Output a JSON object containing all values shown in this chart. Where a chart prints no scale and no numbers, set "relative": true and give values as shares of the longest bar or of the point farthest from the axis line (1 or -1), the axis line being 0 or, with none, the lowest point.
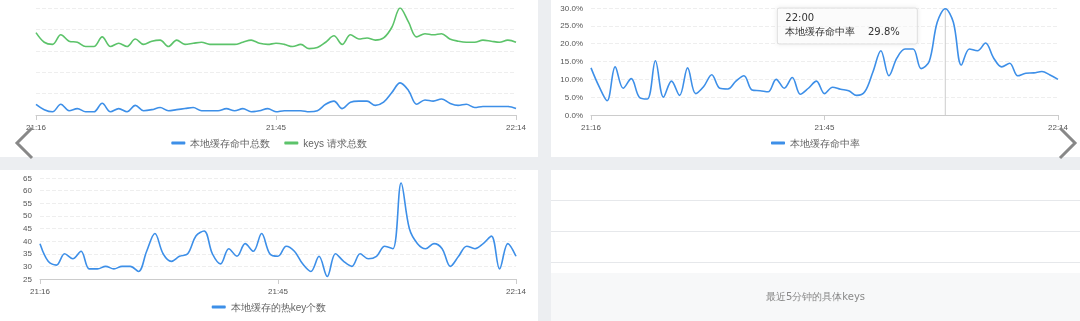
{
  "chart_data": [
    {
      "type": "line",
      "relative": true,
      "legend": "bottom",
      "grid": "y",
      "marker": "none",
      "x": [
        21.2667,
        21.2833,
        21.3,
        21.3167,
        21.3333,
        21.35,
        21.3667,
        21.3833,
        21.4,
        21.4167,
        21.4333,
        21.45,
        21.4667,
        21.4833,
        21.5,
        21.5167,
        21.5333,
        21.55,
        21.5667,
        21.5833,
        21.6,
        21.6167,
        21.6333,
        21.65,
        21.6667,
        21.6833,
        21.7,
        21.7167,
        21.7333,
        21.75,
        21.7667,
        21.7833,
        21.8,
        21.8167,
        21.8333,
        21.85,
        21.8667,
        21.8833,
        21.9,
        21.9167,
        21.9333,
        21.95,
        21.9667,
        21.9833,
        22.0,
        22.0167,
        22.0333,
        22.05,
        22.0667,
        22.0833,
        22.1,
        22.1167,
        22.1333,
        22.15,
        22.1667,
        22.1833,
        22.2,
        22.2167,
        22.2333
      ],
      "xlim": [
        21.2667,
        22.2333
      ],
      "xticks": [
        {
          "value": 21.2667,
          "label": "21:16"
        },
        {
          "value": 21.75,
          "label": "21:45"
        },
        {
          "value": 22.2333,
          "label": "22:14"
        }
      ],
      "series": [
        {
          "name": "本地缓存命中总数",
          "color": "#3d8fe8",
          "values": [
            0.1,
            0.05,
            0.03,
            0.1,
            0.04,
            0.06,
            0.03,
            0.03,
            0.11,
            0.03,
            0.06,
            0.03,
            0.09,
            0.04,
            0.05,
            0.07,
            0.04,
            0.05,
            0.06,
            0.07,
            0.04,
            0.04,
            0.04,
            0.06,
            0.04,
            0.06,
            0.03,
            0.04,
            0.06,
            0.03,
            0.04,
            0.04,
            0.04,
            0.03,
            0.04,
            0.1,
            0.13,
            0.06,
            0.12,
            0.13,
            0.13,
            0.09,
            0.12,
            0.21,
            0.3,
            0.23,
            0.1,
            0.14,
            0.13,
            0.15,
            0.11,
            0.09,
            0.1,
            0.07,
            0.08,
            0.08,
            0.08,
            0.08,
            0.06
          ]
        },
        {
          "name": "keys 请求总数",
          "color": "#5cc36a",
          "values": [
            0.77,
            0.68,
            0.66,
            0.75,
            0.69,
            0.68,
            0.64,
            0.64,
            0.73,
            0.64,
            0.67,
            0.64,
            0.71,
            0.66,
            0.69,
            0.7,
            0.64,
            0.7,
            0.66,
            0.67,
            0.68,
            0.66,
            0.66,
            0.66,
            0.66,
            0.68,
            0.7,
            0.67,
            0.66,
            0.67,
            0.66,
            0.64,
            0.66,
            0.62,
            0.63,
            0.68,
            0.74,
            0.66,
            0.75,
            0.71,
            0.72,
            0.7,
            0.72,
            0.82,
            1,
            0.87,
            0.73,
            0.76,
            0.75,
            0.76,
            0.71,
            0.69,
            0.68,
            0.68,
            0.7,
            0.69,
            0.68,
            0.7,
            0.68
          ]
        }
      ]
    },
    {
      "type": "line",
      "legend": "bottom",
      "grid": "y",
      "marker": "none",
      "x": [
        21.2667,
        21.2833,
        21.3,
        21.3167,
        21.3333,
        21.35,
        21.3667,
        21.3833,
        21.4,
        21.4167,
        21.4333,
        21.45,
        21.4667,
        21.4833,
        21.5,
        21.5167,
        21.5333,
        21.55,
        21.5667,
        21.5833,
        21.6,
        21.6167,
        21.6333,
        21.65,
        21.6667,
        21.6833,
        21.7,
        21.7167,
        21.7333,
        21.75,
        21.7667,
        21.7833,
        21.8,
        21.8167,
        21.8333,
        21.85,
        21.8667,
        21.8833,
        21.9,
        21.9167,
        21.9333,
        21.95,
        21.9667,
        21.9833,
        22.0,
        22.0167,
        22.0333,
        22.05,
        22.0667,
        22.0833,
        22.1,
        22.1167,
        22.1333,
        22.15,
        22.1667,
        22.1833,
        22.2,
        22.2167,
        22.2333
      ],
      "xlim": [
        21.2667,
        22.2333
      ],
      "xticks": [
        {
          "value": 21.2667,
          "label": "21:16"
        },
        {
          "value": 21.75,
          "label": "21:45"
        },
        {
          "value": 22.2333,
          "label": "22:14"
        }
      ],
      "ylim": [
        0,
        30
      ],
      "yticks": [
        {
          "value": 0,
          "label": "0.0%"
        },
        {
          "value": 5,
          "label": "5.0%"
        },
        {
          "value": 10,
          "label": "10.0%"
        },
        {
          "value": 15,
          "label": "15.0%"
        },
        {
          "value": 20,
          "label": "20.0%"
        },
        {
          "value": 25,
          "label": "25.0%"
        },
        {
          "value": 30,
          "label": "30.0%"
        }
      ],
      "annotations": [
        "22:00",
        "本地缓存命中率    29.8%"
      ],
      "ref_lines": [
        {
          "axis": "x",
          "value": 22.0,
          "color": "#cccccc"
        }
      ],
      "series": [
        {
          "name": "本地缓存命中率",
          "color": "#3d8fe8",
          "values": [
            13.2,
            8,
            4,
            13.5,
            7.5,
            10.2,
            5,
            4.5,
            15.2,
            5,
            9.5,
            5.5,
            13.2,
            6,
            8,
            11.3,
            7.5,
            7.3,
            9.5,
            11,
            7,
            6.8,
            6.5,
            10,
            7.5,
            10.5,
            5.8,
            7.5,
            9.5,
            6,
            7.8,
            7.2,
            6.8,
            5.5,
            6.5,
            12,
            18,
            11,
            16,
            18.5,
            18.5,
            13,
            15,
            26,
            29.8,
            26,
            14,
            18.5,
            18,
            20.2,
            16,
            13.5,
            14.5,
            11,
            11.7,
            11.8,
            12.2,
            11.2,
            10
          ]
        }
      ]
    },
    {
      "type": "line",
      "legend": "bottom",
      "grid": "y",
      "marker": "none",
      "x": [
        21.2667,
        21.2833,
        21.3,
        21.3167,
        21.3333,
        21.35,
        21.3667,
        21.3833,
        21.4,
        21.4167,
        21.4333,
        21.45,
        21.4667,
        21.4833,
        21.5,
        21.5167,
        21.5333,
        21.55,
        21.5667,
        21.5833,
        21.6,
        21.6167,
        21.6333,
        21.65,
        21.6667,
        21.6833,
        21.7,
        21.7167,
        21.7333,
        21.75,
        21.7667,
        21.7833,
        21.8,
        21.8167,
        21.8333,
        21.85,
        21.8667,
        21.8833,
        21.9,
        21.9167,
        21.9333,
        21.95,
        21.9667,
        21.9833,
        22.0,
        22.0167,
        22.0333,
        22.05,
        22.0667,
        22.0833,
        22.1,
        22.1167,
        22.1333,
        22.15,
        22.1667,
        22.1833,
        22.2,
        22.2167,
        22.2333
      ],
      "xlim": [
        21.2667,
        22.2333
      ],
      "xticks": [
        {
          "value": 21.2667,
          "label": "21:16"
        },
        {
          "value": 21.75,
          "label": "21:45"
        },
        {
          "value": 22.2333,
          "label": "22:14"
        }
      ],
      "ylim": [
        25,
        65
      ],
      "yticks": [
        25,
        30,
        35,
        40,
        45,
        50,
        55,
        60,
        65
      ],
      "series": [
        {
          "name": "本地缓存的热key个数",
          "color": "#3d8fe8",
          "values": [
            39,
            32,
            30.5,
            35,
            33,
            36,
            29,
            29,
            30,
            29,
            30,
            30,
            28,
            36,
            43,
            35,
            32,
            34,
            35,
            42,
            44,
            35,
            31,
            37,
            34,
            39,
            36,
            43,
            35,
            34,
            38,
            36,
            31,
            28,
            34,
            26,
            35,
            32,
            30,
            35,
            33,
            34,
            38,
            37,
            63,
            45,
            39,
            37,
            39,
            37,
            30,
            34,
            38,
            37,
            39,
            42,
            29,
            39,
            34
          ]
        }
      ]
    },
    {
      "type": "other",
      "annotations": [
        "最近5分钟的具体keys"
      ]
    }
  ]
}
